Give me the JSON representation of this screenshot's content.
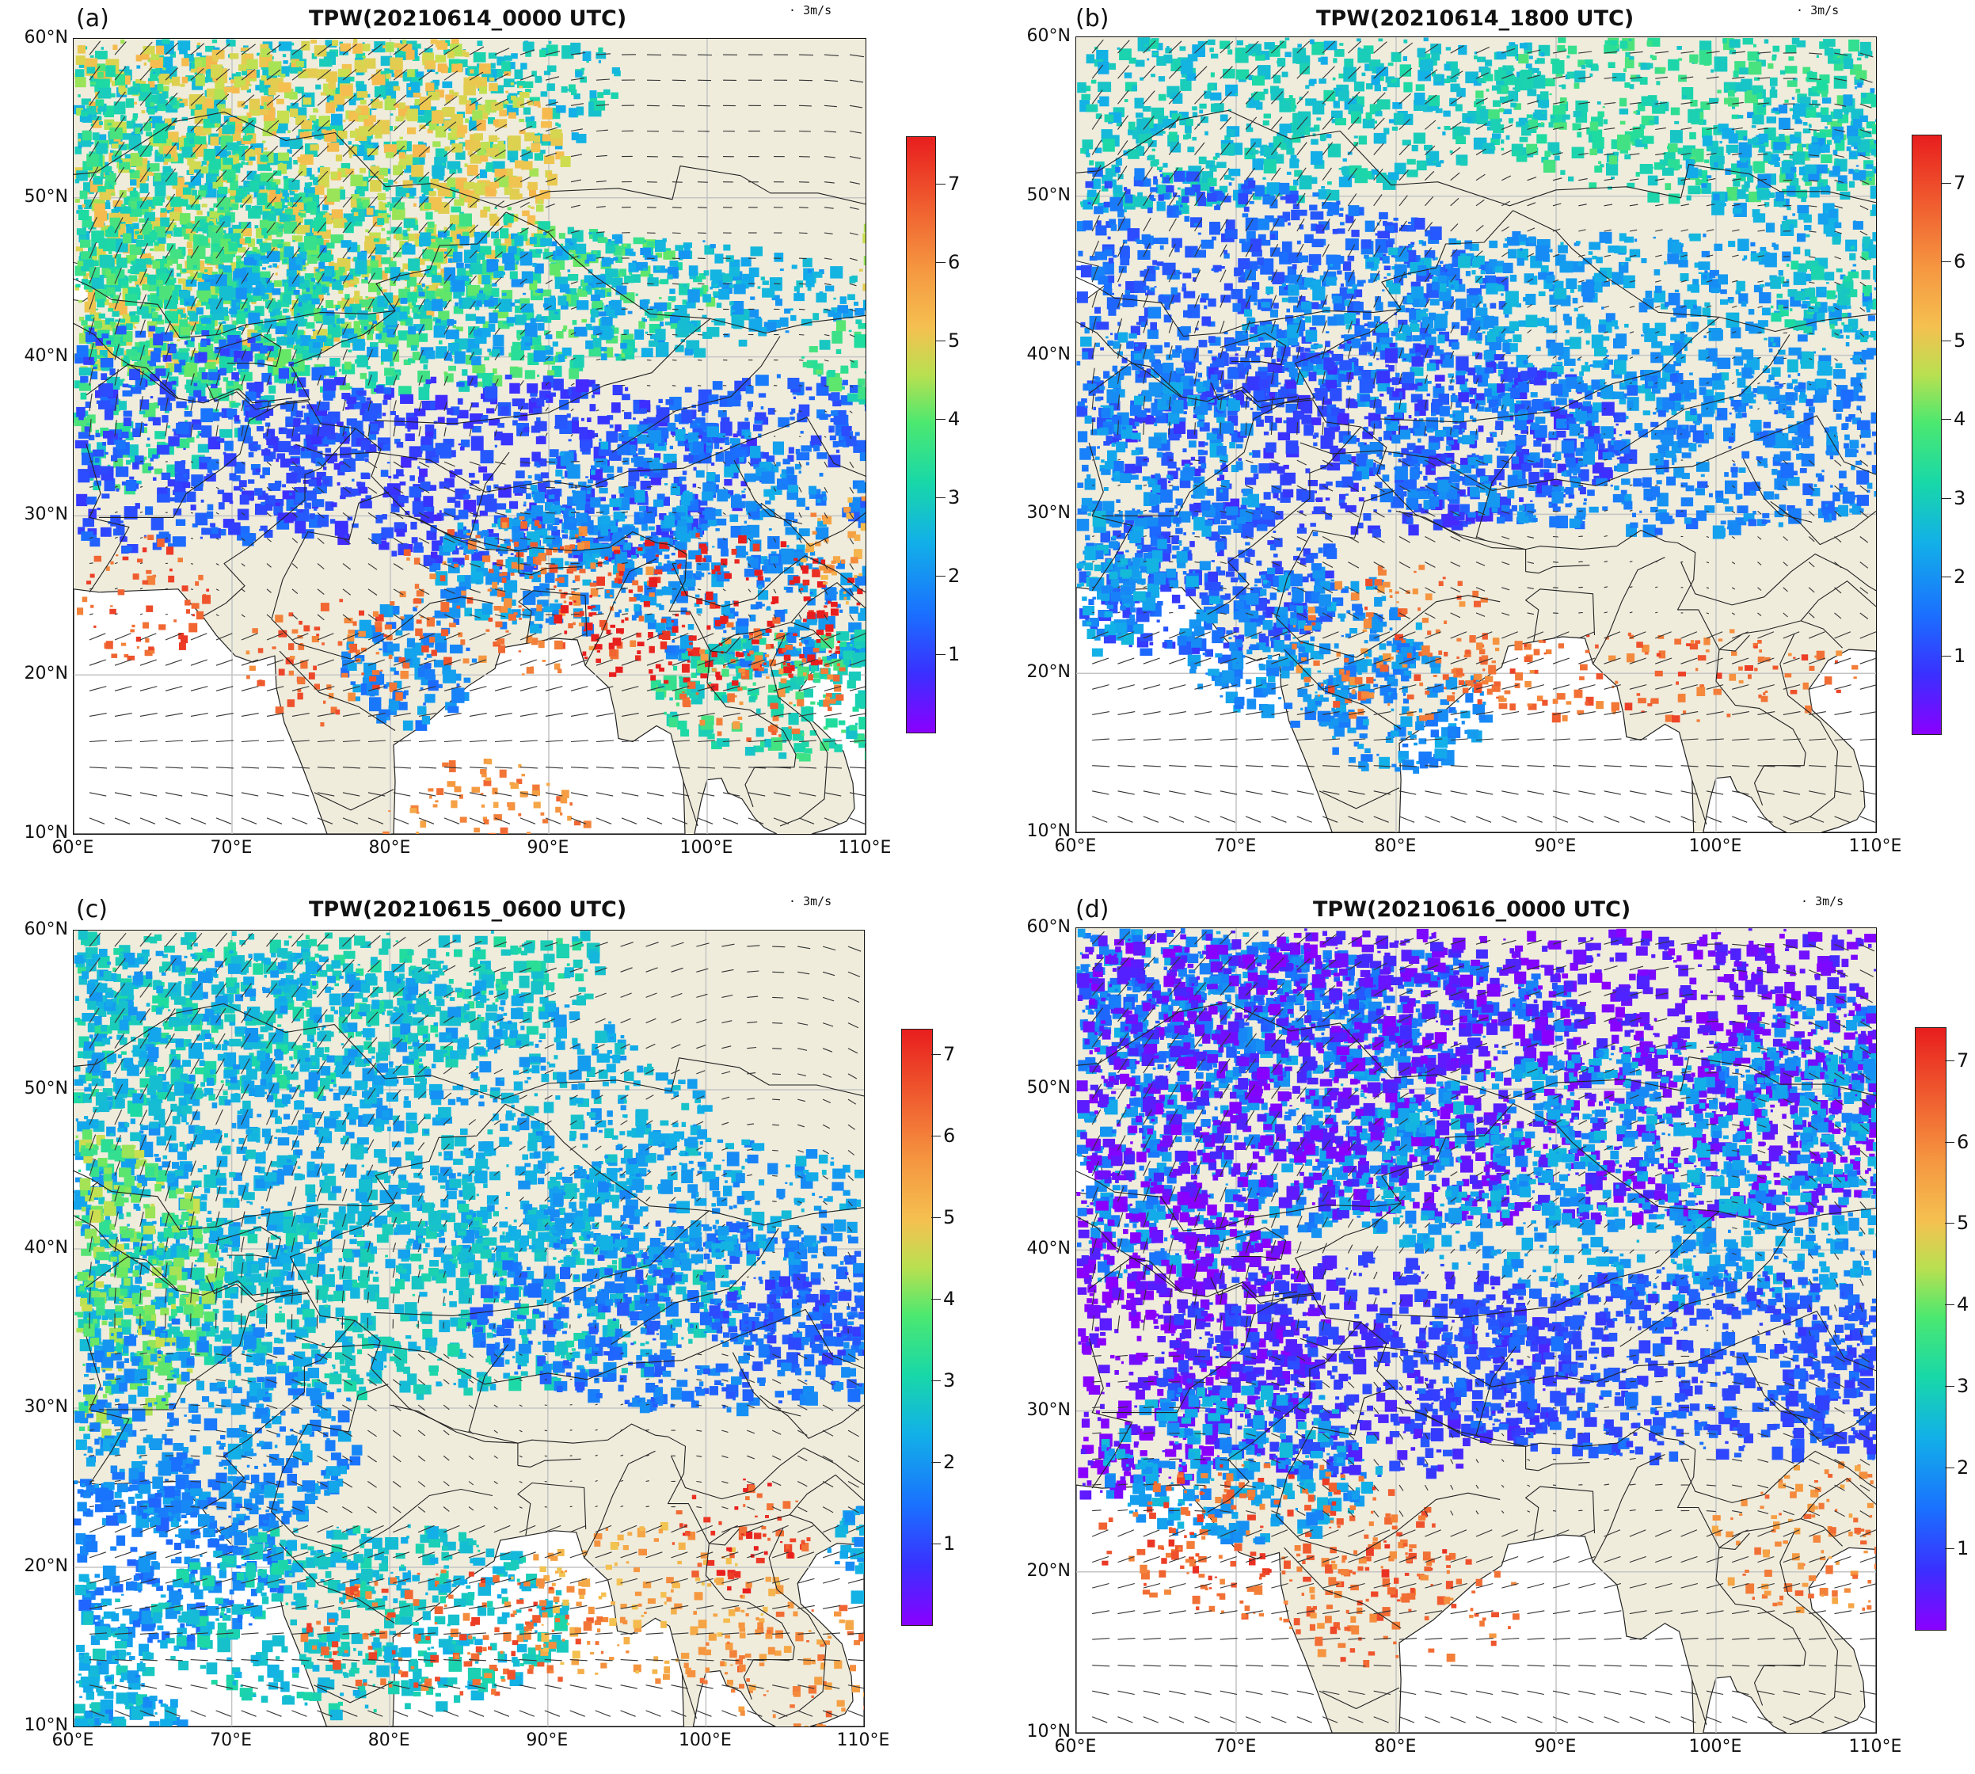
{
  "panels": [
    {
      "tag": "(a)",
      "title": "TPW(20210614_0000 UTC)",
      "scale": "3m/s",
      "colorbar_max": 7.6
    },
    {
      "tag": "(b)",
      "title": "TPW(20210614_1800 UTC)",
      "scale": "3m/s",
      "colorbar_max": 7.6
    },
    {
      "tag": "(c)",
      "title": "TPW(20210615_0600 UTC)",
      "scale": "3m/s",
      "colorbar_max": 7.3
    },
    {
      "tag": "(d)",
      "title": "TPW(20210616_0000 UTC)",
      "scale": "3m/s",
      "colorbar_max": 7.4
    }
  ],
  "lat_labels": [
    "60°N",
    "50°N",
    "40°N",
    "30°N",
    "20°N",
    "10°N"
  ],
  "lon_labels": [
    "60°E",
    "70°E",
    "80°E",
    "90°E",
    "100°E",
    "110°E"
  ],
  "colorbar_ticks": [
    "1",
    "2",
    "3",
    "4",
    "5",
    "6",
    "7"
  ],
  "extent": {
    "lon": [
      60,
      110
    ],
    "lat": [
      10,
      60
    ]
  },
  "colors": {
    "land": "#efecdc",
    "ocean": "#ffffff",
    "grid": "#c4c4c4"
  }
}
